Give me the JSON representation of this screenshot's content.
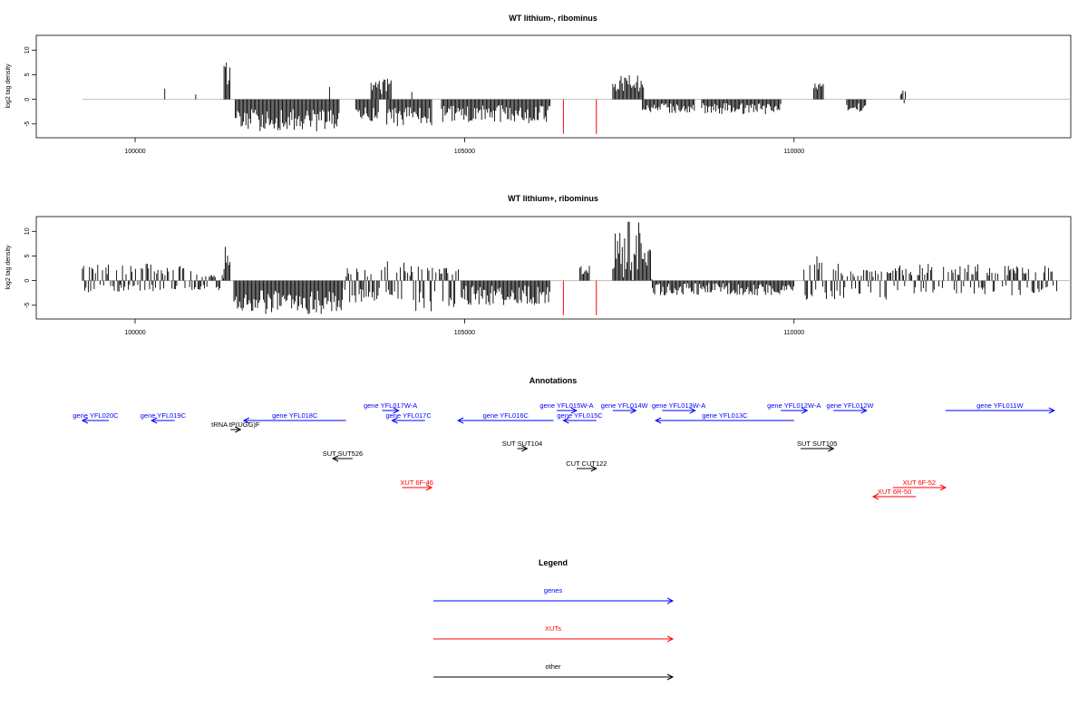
{
  "chart_data": [
    {
      "type": "bar",
      "title": "WT lithium-, ribominus",
      "ylabel": "log2 tag density",
      "xlim": [
        98500,
        114200
      ],
      "ylim": [
        -7.8,
        13
      ],
      "yticks": [
        -5,
        0,
        5,
        10
      ],
      "xticks": [
        100000,
        105000,
        110000
      ],
      "baseline_range": [
        99200,
        114200
      ],
      "red_marks": [
        106500,
        107000
      ],
      "series": [
        {
          "segments": [
            {
              "x0": 100450,
              "x1": 100470,
              "vmin": 2.2,
              "vmax": 2.2
            },
            {
              "x0": 100920,
              "x1": 100940,
              "vmin": 1.0,
              "vmax": 1.0
            },
            {
              "x0": 101350,
              "x1": 101440,
              "vmin": 3,
              "vmax": 8
            },
            {
              "x0": 101520,
              "x1": 103100,
              "vmin": -6.5,
              "vmax": -2
            },
            {
              "x0": 102950,
              "x1": 102980,
              "vmin": 2.5,
              "vmax": 2.5
            },
            {
              "x0": 103350,
              "x1": 103700,
              "vmin": -5,
              "vmax": -1.5
            },
            {
              "x0": 103580,
              "x1": 103900,
              "vmin": 1,
              "vmax": 4.2
            },
            {
              "x0": 103820,
              "x1": 104500,
              "vmin": -5.5,
              "vmax": -1.5
            },
            {
              "x0": 104200,
              "x1": 104230,
              "vmin": 1.5,
              "vmax": 1.5
            },
            {
              "x0": 104650,
              "x1": 106300,
              "vmin": -4.8,
              "vmax": -1.2
            },
            {
              "x0": 107250,
              "x1": 107720,
              "vmin": 1.5,
              "vmax": 5
            },
            {
              "x0": 107700,
              "x1": 108500,
              "vmin": -2.8,
              "vmax": -0.8
            },
            {
              "x0": 108600,
              "x1": 109800,
              "vmin": -3,
              "vmax": -0.8
            },
            {
              "x0": 110300,
              "x1": 110450,
              "vmin": 2,
              "vmax": 3.5
            },
            {
              "x0": 110800,
              "x1": 111100,
              "vmin": -2.5,
              "vmax": -0.8
            },
            {
              "x0": 111600,
              "x1": 111720,
              "vmin": -2.5,
              "vmax": 2.2
            }
          ]
        }
      ]
    },
    {
      "type": "bar",
      "title": "WT lithium+, ribominus",
      "ylabel": "log2 tag density",
      "xlim": [
        98500,
        114200
      ],
      "ylim": [
        -7.8,
        13
      ],
      "yticks": [
        -5,
        0,
        5,
        10
      ],
      "xticks": [
        100000,
        105000,
        110000
      ],
      "baseline_range": [
        99200,
        114200
      ],
      "red_marks": [
        106500,
        107000
      ],
      "series": [
        {
          "segments": [
            {
              "x0": 99200,
              "x1": 101000,
              "vmin": -2.5,
              "vmax": 3.5
            },
            {
              "x0": 101000,
              "x1": 101350,
              "vmin": -2.5,
              "vmax": 1.5
            },
            {
              "x0": 101350,
              "x1": 101440,
              "vmin": 1,
              "vmax": 7.5
            },
            {
              "x0": 101500,
              "x1": 103150,
              "vmin": -6.8,
              "vmax": -2
            },
            {
              "x0": 103150,
              "x1": 103650,
              "vmin": -4.5,
              "vmax": 2.5
            },
            {
              "x0": 103650,
              "x1": 104100,
              "vmin": -4.5,
              "vmax": 5
            },
            {
              "x0": 104100,
              "x1": 104950,
              "vmin": -6.5,
              "vmax": 3
            },
            {
              "x0": 104950,
              "x1": 106300,
              "vmin": -5,
              "vmax": -1
            },
            {
              "x0": 106750,
              "x1": 106900,
              "vmin": 1,
              "vmax": 3
            },
            {
              "x0": 107250,
              "x1": 107850,
              "vmin": 0,
              "vmax": 12
            },
            {
              "x0": 107850,
              "x1": 110000,
              "vmin": -3,
              "vmax": -0.5
            },
            {
              "x0": 110150,
              "x1": 110700,
              "vmin": -4,
              "vmax": 5
            },
            {
              "x0": 110700,
              "x1": 111500,
              "vmin": -4,
              "vmax": 2.5
            },
            {
              "x0": 111500,
              "x1": 114000,
              "vmin": -3,
              "vmax": 3.5
            }
          ]
        }
      ]
    }
  ],
  "annotations": {
    "title": "Annotations",
    "xlim": [
      98500,
      114200
    ],
    "items": [
      {
        "label": "gene YFL020C",
        "cat": "gene",
        "x1": 99600,
        "x2": 99200,
        "row": 2
      },
      {
        "label": "gene YFL019C",
        "cat": "gene",
        "x1": 100600,
        "x2": 100250,
        "row": 2
      },
      {
        "label": "tRNA tP(UGG)F",
        "cat": "other",
        "x1": 101450,
        "x2": 101600,
        "row": 3
      },
      {
        "label": "gene YFL018C",
        "cat": "gene",
        "x1": 103200,
        "x2": 101650,
        "row": 2
      },
      {
        "label": "gene YFL017W-A",
        "cat": "gene",
        "x1": 103750,
        "x2": 104000,
        "row": 1
      },
      {
        "label": "gene YFL017C",
        "cat": "gene",
        "x1": 104400,
        "x2": 103900,
        "row": 2
      },
      {
        "label": "gene YFL016C",
        "cat": "gene",
        "x1": 106350,
        "x2": 104900,
        "row": 2
      },
      {
        "label": "gene YFL015W-A",
        "cat": "gene",
        "x1": 106400,
        "x2": 106700,
        "row": 1
      },
      {
        "label": "gene YFL015C",
        "cat": "gene",
        "x1": 107000,
        "x2": 106500,
        "row": 2
      },
      {
        "label": "gene YFL014W",
        "cat": "gene",
        "x1": 107250,
        "x2": 107600,
        "row": 1
      },
      {
        "label": "gene YFL013W-A",
        "cat": "gene",
        "x1": 108000,
        "x2": 108500,
        "row": 1
      },
      {
        "label": "gene YFL013C",
        "cat": "gene",
        "x1": 110000,
        "x2": 107900,
        "row": 2
      },
      {
        "label": "gene YFL012W-A",
        "cat": "gene",
        "x1": 109800,
        "x2": 110200,
        "row": 1
      },
      {
        "label": "gene YFL012W",
        "cat": "gene",
        "x1": 110600,
        "x2": 111100,
        "row": 1
      },
      {
        "label": "gene YFL011W",
        "cat": "gene",
        "x1": 112300,
        "x2": 113950,
        "row": 1
      },
      {
        "label": "SUT SUT526",
        "cat": "other",
        "x1": 103300,
        "x2": 103000,
        "row": 5
      },
      {
        "label": "SUT SUT104",
        "cat": "other",
        "x1": 105800,
        "x2": 105950,
        "row": 4
      },
      {
        "label": "SUT SUT105",
        "cat": "other",
        "x1": 110100,
        "x2": 110600,
        "row": 4
      },
      {
        "label": "CUT CUT122",
        "cat": "other",
        "x1": 106700,
        "x2": 107000,
        "row": 6
      },
      {
        "label": "XUT 6F-46",
        "cat": "xut",
        "x1": 104050,
        "x2": 104500,
        "row": 7
      },
      {
        "label": "XUT 6F-52",
        "cat": "xut",
        "x1": 111500,
        "x2": 112300,
        "row": 7
      },
      {
        "label": "XUT 6R-50",
        "cat": "xut",
        "x1": 111850,
        "x2": 111200,
        "row": 8
      }
    ]
  },
  "legend": {
    "title": "Legend",
    "items": [
      {
        "label": "genes",
        "color": "#0000ff"
      },
      {
        "label": "XUTs",
        "color": "#ff0000"
      },
      {
        "label": "other",
        "color": "#000000"
      }
    ]
  },
  "colors": {
    "gene": "#0000ff",
    "xut": "#ff0000",
    "other": "#000000",
    "baseline": "#bebebe",
    "red_mark": "#ff0000"
  }
}
